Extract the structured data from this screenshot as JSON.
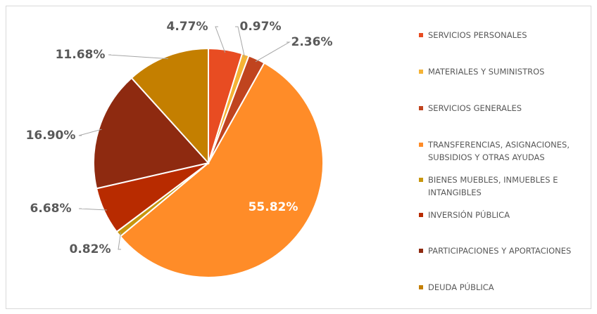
{
  "chart_data": {
    "type": "pie",
    "categories": [
      "SERVICIOS PERSONALES",
      "MATERIALES Y SUMINISTROS",
      "SERVICIOS GENERALES",
      "TRANSFERENCIAS, ASIGNACIONES, SUBSIDIOS Y OTRAS AYUDAS",
      "BIENES MUEBLES, INMUEBLES E INTANGIBLES",
      "INVERSIÓN PÚBLICA",
      "PARTICIPACIONES Y APORTACIONES",
      "DEUDA PÚBLICA"
    ],
    "values": [
      4.77,
      0.97,
      2.36,
      55.82,
      0.82,
      6.68,
      16.9,
      11.68
    ],
    "value_labels": [
      "4.77%",
      "0.97%",
      "2.36%",
      "55.82%",
      "0.82%",
      "6.68%",
      "16.90%",
      "11.68%"
    ],
    "colors": [
      "#E84C22",
      "#F5B335",
      "#C0441F",
      "#FF8C28",
      "#C8960E",
      "#B82B00",
      "#8E2A10",
      "#C47F00"
    ],
    "legend": "right"
  }
}
